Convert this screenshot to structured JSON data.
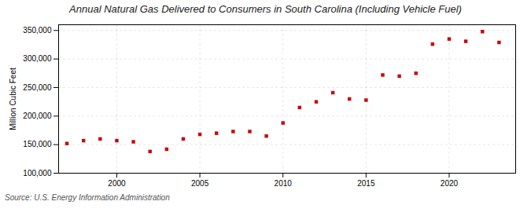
{
  "chart_data": {
    "type": "scatter",
    "title": "Annual Natural Gas Delivered to Consumers in South Carolina (Including Vehicle Fuel)",
    "ylabel": "Million Cubic Feet",
    "source": "Source: U.S. Energy Information Administration",
    "x": [
      1997,
      1998,
      1999,
      2000,
      2001,
      2002,
      2003,
      2004,
      2005,
      2006,
      2007,
      2008,
      2009,
      2010,
      2011,
      2012,
      2013,
      2014,
      2015,
      2016,
      2017,
      2018,
      2019,
      2020,
      2021,
      2022,
      2023
    ],
    "values": [
      152000,
      157000,
      160000,
      157000,
      155000,
      138000,
      142000,
      160000,
      168000,
      170000,
      173000,
      173000,
      165000,
      188000,
      215000,
      225000,
      241000,
      230000,
      228000,
      272000,
      270000,
      275000,
      326000,
      335000,
      331000,
      348000,
      329000
    ],
    "color": "#cc0000",
    "marker": "square",
    "xlim": [
      1996.5,
      2024
    ],
    "xticks": [
      2000,
      2005,
      2010,
      2015,
      2020
    ],
    "ylim": [
      100000,
      360000
    ],
    "yticks": [
      {
        "value": 100000,
        "label": "100,000"
      },
      {
        "value": 150000,
        "label": "150,000"
      },
      {
        "value": 200000,
        "label": "200,000"
      },
      {
        "value": 250000,
        "label": "250,000"
      },
      {
        "value": 300000,
        "label": "300,000"
      },
      {
        "value": 350000,
        "label": "350,000"
      }
    ],
    "grid": true
  }
}
